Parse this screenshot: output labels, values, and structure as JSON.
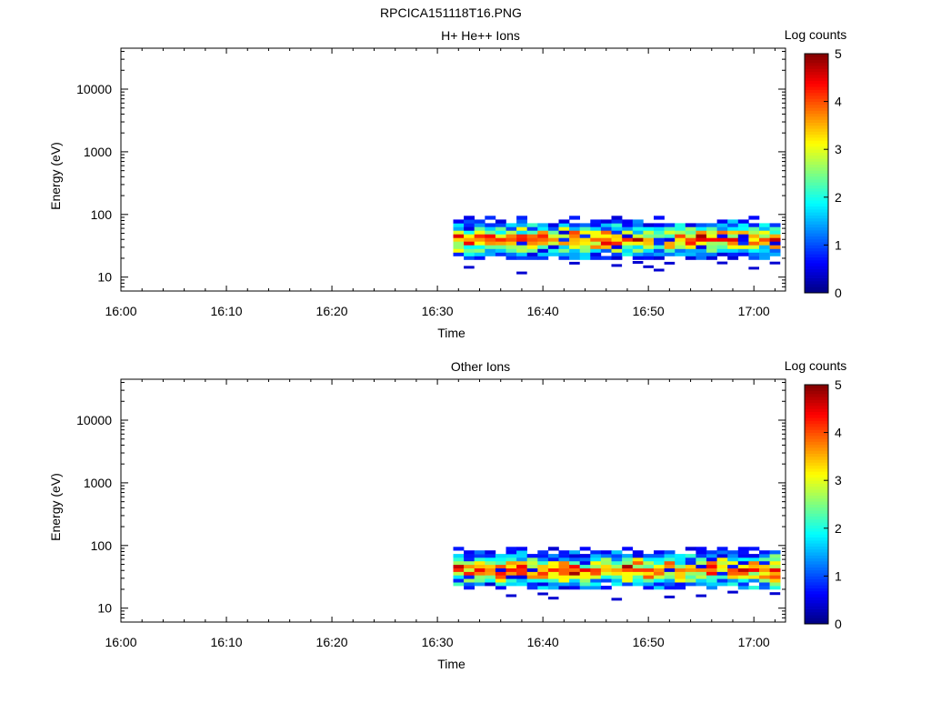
{
  "figure_title": "RPCICA151118T16.PNG",
  "chart_data": [
    {
      "type": "heatmap",
      "title": "H+ He++ Ions",
      "xlabel": "Time",
      "ylabel": "Energy (eV)",
      "yscale": "log",
      "xlim": [
        "16:00",
        "17:03"
      ],
      "ylim": [
        6,
        45000
      ],
      "x_ticks": [
        "16:00",
        "16:10",
        "16:20",
        "16:30",
        "16:40",
        "16:50",
        "17:00"
      ],
      "y_ticks": [
        "10",
        "100",
        "1000",
        "10000"
      ],
      "colorbar": {
        "label": "Log counts",
        "range": [
          0,
          5
        ],
        "ticks": [
          "0",
          "1",
          "2",
          "3",
          "4",
          "5"
        ]
      },
      "data_time_range": [
        "16:31.5",
        "17:02.5"
      ],
      "data_energy_range": [
        19,
        95
      ],
      "description": "Columns of ~1 min bins; ion counts concentrated at 20–95 eV with peak log counts ~4 near 40–60 eV",
      "max_log_counts": 4.2
    },
    {
      "type": "heatmap",
      "title": "Other Ions",
      "xlabel": "Time",
      "ylabel": "Energy (eV)",
      "yscale": "log",
      "xlim": [
        "16:00",
        "17:03"
      ],
      "ylim": [
        6,
        45000
      ],
      "x_ticks": [
        "16:00",
        "16:10",
        "16:20",
        "16:30",
        "16:40",
        "16:50",
        "17:00"
      ],
      "y_ticks": [
        "10",
        "100",
        "1000",
        "10000"
      ],
      "colorbar": {
        "label": "Log counts",
        "range": [
          0,
          5
        ],
        "ticks": [
          "0",
          "1",
          "2",
          "3",
          "4",
          "5"
        ]
      },
      "data_time_range": [
        "16:31.5",
        "17:02.5"
      ],
      "data_energy_range": [
        20,
        95
      ],
      "description": "Columns of ~1 min bins; ion counts concentrated at 22–95 eV with peak log counts ~4 near 40–55 eV",
      "max_log_counts": 4.3
    }
  ]
}
